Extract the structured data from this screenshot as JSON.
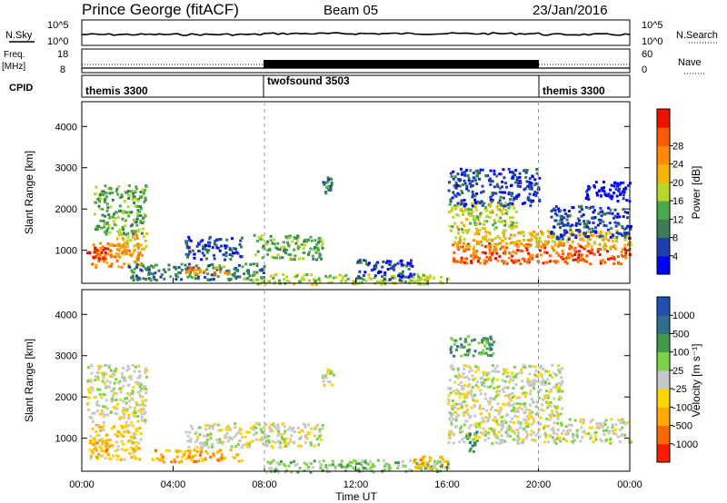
{
  "header": {
    "station": "Prince George (fitACF)",
    "beam": "Beam 05",
    "date": "23/Jan/2016"
  },
  "nsky_panel": {
    "left_label": "N.Sky",
    "right_label": "N.Search",
    "left_ticks": [
      "10^5",
      "10^0"
    ],
    "right_ticks": [
      "10^5",
      "10^0"
    ]
  },
  "freq_panel": {
    "left_label_line1": "Freq.",
    "left_label_line2": "[MHz]",
    "right_label": "Nave",
    "left_ticks": [
      "18",
      "8"
    ],
    "right_ticks": [
      "60",
      "0"
    ]
  },
  "cpid": {
    "label": "CPID",
    "segments": [
      {
        "name": "themis 3300",
        "start_hour": 0,
        "end_hour": 8
      },
      {
        "name": "twofsound 3503",
        "start_hour": 8,
        "end_hour": 20
      },
      {
        "name": "themis 3300",
        "start_hour": 20,
        "end_hour": 24
      }
    ]
  },
  "chart_data": [
    {
      "type": "heatmap",
      "name": "Power",
      "ylabel": "Slant Range [km]",
      "xlim": [
        0,
        24
      ],
      "ylim": [
        200,
        4600
      ],
      "yticks": [
        "1000",
        "2000",
        "3000",
        "4000"
      ],
      "colorbar_label": "Power [dB]",
      "colorbar_ticks": [
        "4",
        "8",
        "12",
        "16",
        "20",
        "24",
        "28"
      ],
      "colorbar_colors": [
        "#0000ff",
        "#1e3fb4",
        "#3a7d55",
        "#4aa94a",
        "#b5d82a",
        "#f5b400",
        "#ff8c00",
        "#ff5a00",
        "#ee1100"
      ],
      "regions": [
        {
          "t0": 0.4,
          "t1": 2.6,
          "r0": 600,
          "r1": 1200,
          "level": 6
        },
        {
          "t0": 0.2,
          "t1": 1.2,
          "r0": 800,
          "r1": 1100,
          "level": 8
        },
        {
          "t0": 1.5,
          "t1": 2.8,
          "r0": 900,
          "r1": 1500,
          "level": 5
        },
        {
          "t0": 0.5,
          "t1": 2.8,
          "r0": 1400,
          "r1": 2600,
          "level": 3
        },
        {
          "t0": 2.0,
          "t1": 8.0,
          "r0": 300,
          "r1": 700,
          "level": 2
        },
        {
          "t0": 4.5,
          "t1": 6.5,
          "r0": 450,
          "r1": 650,
          "level": 6
        },
        {
          "t0": 4.5,
          "t1": 7.0,
          "r0": 800,
          "r1": 1350,
          "level": 1
        },
        {
          "t0": 7.5,
          "t1": 10.5,
          "r0": 800,
          "r1": 1400,
          "level": 3
        },
        {
          "t0": 7.0,
          "t1": 16.0,
          "r0": 200,
          "r1": 450,
          "level": 4
        },
        {
          "t0": 10.5,
          "t1": 11.0,
          "r0": 2400,
          "r1": 2800,
          "level": 2
        },
        {
          "t0": 12.0,
          "t1": 14.5,
          "r0": 300,
          "r1": 800,
          "level": 1
        },
        {
          "t0": 16.2,
          "t1": 24.0,
          "r0": 700,
          "r1": 1200,
          "level": 7
        },
        {
          "t0": 16.2,
          "t1": 24.0,
          "r0": 1100,
          "r1": 1500,
          "level": 5
        },
        {
          "t0": 16.0,
          "t1": 19.0,
          "r0": 1500,
          "r1": 2200,
          "level": 4
        },
        {
          "t0": 16.0,
          "t1": 20.0,
          "r0": 2100,
          "r1": 3000,
          "level": 1
        },
        {
          "t0": 20.5,
          "t1": 24.0,
          "r0": 1300,
          "r1": 2100,
          "level": 1
        },
        {
          "t0": 22.0,
          "t1": 24.0,
          "r0": 2200,
          "r1": 2700,
          "level": 0
        }
      ]
    },
    {
      "type": "heatmap",
      "name": "Velocity",
      "ylabel": "Slant Range [km]",
      "xlabel": "Time UT",
      "xlim": [
        0,
        24
      ],
      "ylim": [
        200,
        4600
      ],
      "yticks": [
        "1000",
        "2000",
        "3000",
        "4000"
      ],
      "xticks": [
        "00:00",
        "04:00",
        "08:00",
        "12:00",
        "16:00",
        "20:00",
        "00:00"
      ],
      "colorbar_label": "Velocity [m s⁻¹]",
      "colorbar_ticks": [
        "1000",
        "500",
        "100",
        "25",
        "-25",
        "-100",
        "-500",
        "-1000"
      ],
      "colorbar_colors": [
        "#2050b0",
        "#2f6e8e",
        "#3f9a4a",
        "#7ed24a",
        "#c8c8c8",
        "#ffd400",
        "#ffaa00",
        "#ff6a00",
        "#ff1a00"
      ],
      "regions": [
        {
          "t0": 0.2,
          "t1": 2.8,
          "r0": 1400,
          "r1": 2800,
          "level": 4
        },
        {
          "t0": 0.3,
          "t1": 2.6,
          "r0": 500,
          "r1": 1350,
          "level": 5
        },
        {
          "t0": 0.3,
          "t1": 1.2,
          "r0": 700,
          "r1": 1000,
          "level": 6
        },
        {
          "t0": 3.0,
          "t1": 7.0,
          "r0": 450,
          "r1": 750,
          "level": 6
        },
        {
          "t0": 4.5,
          "t1": 10.5,
          "r0": 800,
          "r1": 1400,
          "level": 4
        },
        {
          "t0": 8.0,
          "t1": 16.0,
          "r0": 200,
          "r1": 500,
          "level": 3
        },
        {
          "t0": 14.5,
          "t1": 16.0,
          "r0": 300,
          "r1": 600,
          "level": 6
        },
        {
          "t0": 10.5,
          "t1": 11.0,
          "r0": 2300,
          "r1": 2700,
          "level": 4
        },
        {
          "t0": 16.0,
          "t1": 24.0,
          "r0": 900,
          "r1": 1500,
          "level": 4
        },
        {
          "t0": 16.0,
          "t1": 21.0,
          "r0": 1500,
          "r1": 2800,
          "level": 4
        },
        {
          "t0": 16.8,
          "t1": 17.3,
          "r0": 700,
          "r1": 1200,
          "level": 2
        },
        {
          "t0": 16.0,
          "t1": 18.0,
          "r0": 3000,
          "r1": 3500,
          "level": 2
        }
      ]
    }
  ]
}
